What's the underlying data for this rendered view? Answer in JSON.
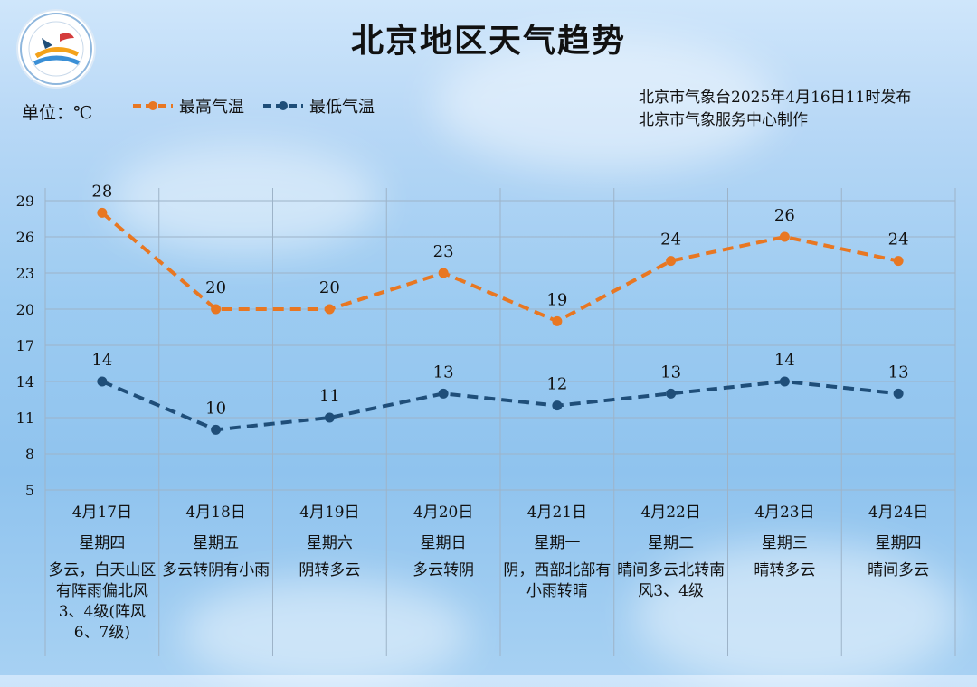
{
  "header": {
    "title": "北京地区天气趋势",
    "unit_label": "单位：℃",
    "issuer_line1": "北京市气象台2025年4月16日11时发布",
    "issuer_line2": "北京市气象服务中心制作"
  },
  "colors": {
    "high": "#e87722",
    "low": "#1f4e79"
  },
  "chart_data": {
    "type": "line",
    "categories": [
      "4月17日",
      "4月18日",
      "4月19日",
      "4月20日",
      "4月21日",
      "4月22日",
      "4月23日",
      "4月24日"
    ],
    "weekdays": [
      "星期四",
      "星期五",
      "星期六",
      "星期日",
      "星期一",
      "星期二",
      "星期三",
      "星期四"
    ],
    "descriptions": [
      "多云，白天山区有阵雨偏北风3、4级(阵风6、7级)",
      "多云转阴有小雨",
      "阴转多云",
      "多云转阴",
      "阴，西部北部有小雨转晴",
      "晴间多云北转南风3、4级",
      "晴转多云",
      "晴间多云"
    ],
    "series": [
      {
        "name": "最高气温",
        "values": [
          28,
          20,
          20,
          23,
          19,
          24,
          26,
          24
        ]
      },
      {
        "name": "最低气温",
        "values": [
          14,
          10,
          11,
          13,
          12,
          13,
          14,
          13
        ]
      }
    ],
    "yticks": [
      29,
      26,
      23,
      20,
      17,
      14,
      11,
      8,
      5
    ],
    "ylim": [
      5,
      29
    ],
    "grid": true,
    "legend": "top-left"
  }
}
